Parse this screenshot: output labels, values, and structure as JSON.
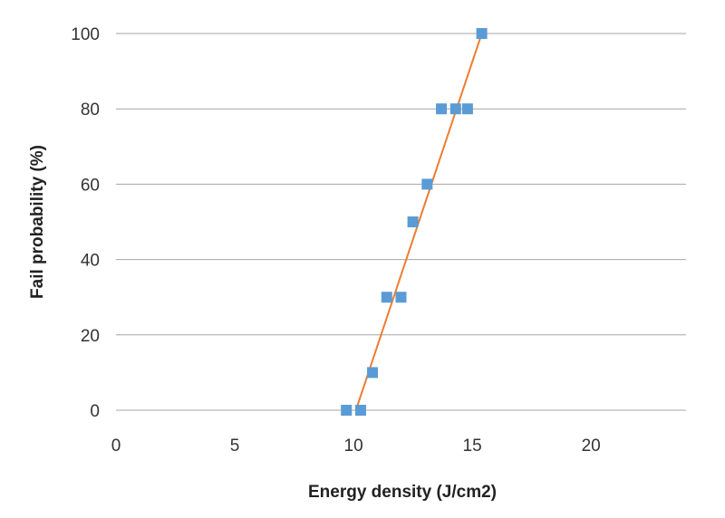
{
  "chart_data": {
    "type": "scatter",
    "title": "",
    "xlabel": "Energy density (J/cm2)",
    "ylabel": "Fail probability (%)",
    "xlim": [
      0,
      24
    ],
    "ylim": [
      0,
      100
    ],
    "x_ticks": [
      0,
      5,
      10,
      15,
      20
    ],
    "y_ticks": [
      0,
      20,
      40,
      60,
      80,
      100
    ],
    "grid": "horizontal",
    "legend": "none",
    "colors": {
      "marker": "#5b9bd5",
      "trendline": "#ed7d31",
      "grid": "#a6a6a6"
    },
    "series": [
      {
        "points": [
          {
            "x": 9.7,
            "y": 0
          },
          {
            "x": 10.3,
            "y": 0
          },
          {
            "x": 10.8,
            "y": 10
          },
          {
            "x": 11.4,
            "y": 30
          },
          {
            "x": 12.0,
            "y": 30
          },
          {
            "x": 12.5,
            "y": 50
          },
          {
            "x": 13.1,
            "y": 60
          },
          {
            "x": 13.7,
            "y": 80
          },
          {
            "x": 14.3,
            "y": 80
          },
          {
            "x": 14.8,
            "y": 80
          },
          {
            "x": 15.4,
            "y": 100
          }
        ]
      }
    ],
    "trendline": {
      "type": "linear",
      "from": {
        "x": 10.1,
        "y": 0
      },
      "to": {
        "x": 15.4,
        "y": 100
      }
    }
  }
}
